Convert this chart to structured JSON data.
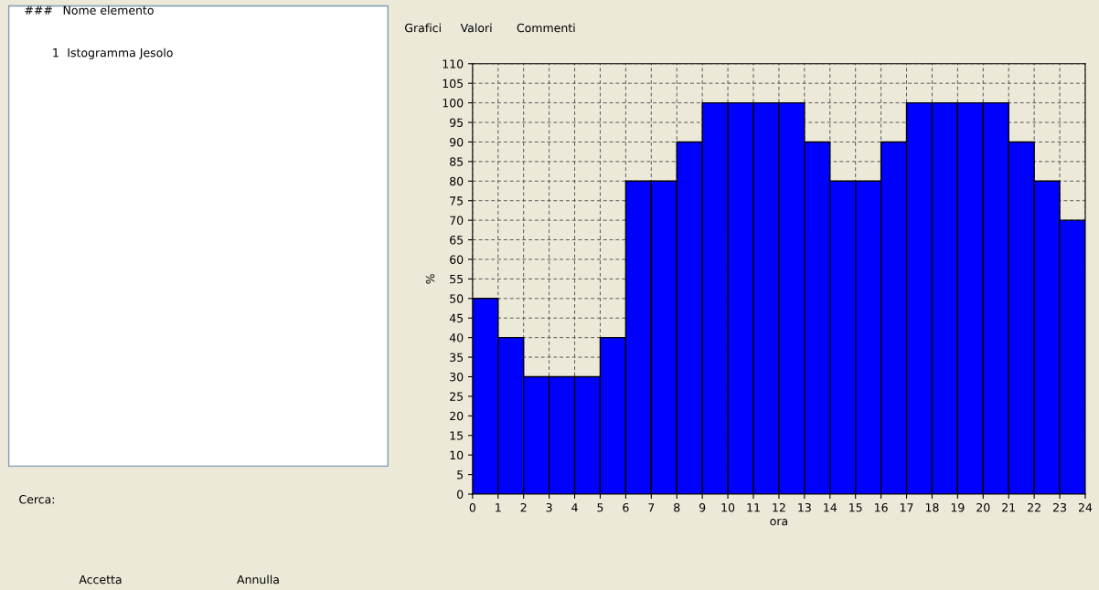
{
  "chart_data": {
    "type": "histogram",
    "xlabel": "ora",
    "ylabel": "%",
    "bins": [
      0,
      1,
      2,
      3,
      4,
      5,
      6,
      7,
      8,
      9,
      10,
      11,
      12,
      13,
      14,
      15,
      16,
      17,
      18,
      19,
      20,
      21,
      22,
      23,
      24
    ],
    "values": [
      50,
      40,
      30,
      30,
      30,
      40,
      80,
      80,
      90,
      100,
      100,
      100,
      100,
      90,
      80,
      80,
      90,
      100,
      100,
      100,
      100,
      90,
      80,
      70
    ],
    "color": "#0000ff",
    "xlim": [
      0,
      24
    ],
    "xticks": [
      0,
      1,
      2,
      3,
      4,
      5,
      6,
      7,
      8,
      9,
      10,
      11,
      12,
      13,
      14,
      15,
      16,
      17,
      18,
      19,
      20,
      21,
      22,
      23,
      24
    ],
    "ylim": [
      0,
      110
    ],
    "yticks": [
      0,
      5,
      10,
      15,
      20,
      25,
      30,
      35,
      40,
      45,
      50,
      55,
      60,
      65,
      70,
      75,
      80,
      85,
      90,
      95,
      100,
      105,
      110
    ],
    "grid": true,
    "annotations": [
      "###",
      "Nome elemento",
      "1",
      "Istogramma Jesolo",
      "Cerca:",
      "Grafici",
      "Valori",
      "Commenti",
      "Accetta",
      "Annulla"
    ]
  }
}
